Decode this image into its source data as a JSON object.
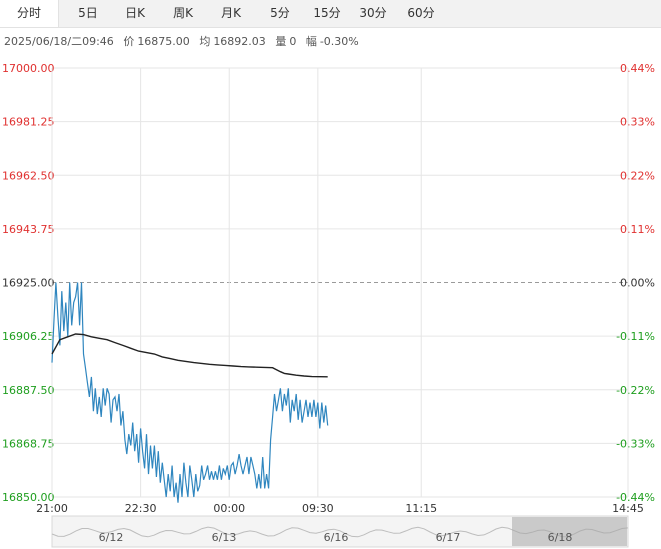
{
  "tabs": [
    {
      "label": "分时",
      "active": true
    },
    {
      "label": "5日",
      "active": false
    },
    {
      "label": "日K",
      "active": false
    },
    {
      "label": "周K",
      "active": false
    },
    {
      "label": "月K",
      "active": false
    },
    {
      "label": "5分",
      "active": false
    },
    {
      "label": "15分",
      "active": false
    },
    {
      "label": "30分",
      "active": false
    },
    {
      "label": "60分",
      "active": false
    }
  ],
  "info": {
    "datetime": "2025/06/18/二09:46",
    "price_label": "价",
    "price": "16875.00",
    "avg_label": "均",
    "avg": "16892.03",
    "volume_label": "量",
    "volume": "0",
    "change_label": "幅",
    "change": "-0.30%"
  },
  "colors": {
    "price_line": "#2f86bf",
    "avg_line": "#222222",
    "up": "#e0302f",
    "down": "#1e9e1e",
    "neutral": "#333333",
    "grid": "#e6e6e6"
  },
  "chart_data": {
    "type": "line",
    "base_price": 16925.0,
    "ylim": [
      16850.0,
      17000.0
    ],
    "y_ticks_left": [
      "17000.00",
      "16981.25",
      "16962.50",
      "16943.75",
      "16925.00",
      "16906.25",
      "16887.50",
      "16868.75",
      "16850.00"
    ],
    "y_ticks_right": [
      "0.44%",
      "0.33%",
      "0.22%",
      "0.11%",
      "0.00%",
      "-0.11%",
      "-0.22%",
      "-0.33%",
      "-0.44%"
    ],
    "x_ticks": [
      "21:00",
      "22:30",
      "00:00",
      "09:30",
      "11:15",
      "14:45"
    ],
    "x_minutes": [
      0,
      90,
      180,
      270,
      375,
      585
    ],
    "x_span_minutes": 585,
    "series": [
      {
        "kind": "price",
        "x": [
          0,
          2,
          4,
          6,
          8,
          10,
          12,
          14,
          16,
          18,
          20,
          22,
          24,
          26,
          28,
          30,
          32,
          34,
          36,
          38,
          40,
          42,
          44,
          46,
          48,
          50,
          52,
          54,
          56,
          58,
          60,
          62,
          64,
          66,
          68,
          70,
          72,
          74,
          76,
          78,
          80,
          82,
          84,
          86,
          88,
          90,
          92,
          94,
          96,
          98,
          100,
          102,
          104,
          106,
          108,
          110,
          112,
          114,
          116,
          118,
          120,
          122,
          124,
          126,
          128,
          130,
          132,
          134,
          136,
          138,
          140,
          142,
          144,
          146,
          148,
          150,
          152,
          154,
          156,
          158,
          160,
          162,
          164,
          166,
          168,
          170,
          172,
          174,
          176,
          178,
          180,
          182,
          184,
          186,
          188,
          190,
          192,
          194,
          196,
          198,
          200,
          202,
          204,
          206,
          208,
          210,
          212,
          214,
          216,
          218,
          220,
          222,
          224,
          226,
          228,
          230,
          232,
          234,
          236,
          238,
          240,
          242,
          244,
          246,
          248,
          250,
          252,
          254,
          256,
          258,
          260,
          262,
          264,
          266,
          268,
          270,
          272,
          274,
          276,
          278,
          280
        ],
        "values": [
          16897,
          16912,
          16925,
          16913,
          16903,
          16922,
          16908,
          16918,
          16906,
          16925,
          16910,
          16918,
          16920,
          16925,
          16910,
          16925,
          16900,
          16895,
          16890,
          16885,
          16892,
          16880,
          16888,
          16879,
          16885,
          16878,
          16888,
          16882,
          16888,
          16886,
          16876,
          16884,
          16885,
          16880,
          16886,
          16875,
          16880,
          16870,
          16865,
          16872,
          16868,
          16876,
          16866,
          16872,
          16862,
          16874,
          16866,
          16860,
          16872,
          16858,
          16868,
          16860,
          16868,
          16857,
          16866,
          16855,
          16862,
          16856,
          16850,
          16858,
          16852,
          16861,
          16850,
          16855,
          16848,
          16858,
          16850,
          16862,
          16855,
          16850,
          16861,
          16856,
          16850,
          16858,
          16852,
          16854,
          16861,
          16856,
          16858,
          16861,
          16856,
          16859,
          16856,
          16859,
          16856,
          16861,
          16856,
          16860,
          16858,
          16861,
          16856,
          16861,
          16862,
          16858,
          16861,
          16865,
          16861,
          16858,
          16861,
          16864,
          16858,
          16864,
          16861,
          16858,
          16853,
          16858,
          16853,
          16864,
          16853,
          16858,
          16853,
          16870,
          16878,
          16886,
          16880,
          16884,
          16888,
          16880,
          16886,
          16882,
          16888,
          16876,
          16884,
          16880,
          16886,
          16877,
          16884,
          16876,
          16880,
          16884,
          16878,
          16883,
          16878,
          16884,
          16878,
          16883,
          16874,
          16883,
          16876,
          16882,
          16875
        ]
      },
      {
        "kind": "average",
        "x": [
          0,
          8,
          16,
          24,
          32,
          40,
          48,
          56,
          64,
          72,
          80,
          88,
          96,
          104,
          112,
          120,
          128,
          136,
          144,
          152,
          160,
          168,
          176,
          184,
          192,
          200,
          208,
          216,
          224,
          228,
          232,
          236,
          240,
          248,
          256,
          264,
          272,
          280
        ],
        "values": [
          16900,
          16905,
          16906,
          16907,
          16906.8,
          16906,
          16905.5,
          16905,
          16904,
          16903,
          16902,
          16901,
          16900.5,
          16900,
          16899,
          16898.4,
          16897.8,
          16897.4,
          16897,
          16896.7,
          16896.4,
          16896.2,
          16896,
          16895.8,
          16895.6,
          16895.5,
          16895.4,
          16895.3,
          16895.2,
          16894.5,
          16893.8,
          16893.2,
          16893,
          16892.6,
          16892.3,
          16892.1,
          16892.05,
          16892.03
        ]
      }
    ],
    "navigator": {
      "labels": [
        "6/12",
        "6/13",
        "6/16",
        "6/17",
        "6/18"
      ],
      "selected": "6/18"
    }
  }
}
